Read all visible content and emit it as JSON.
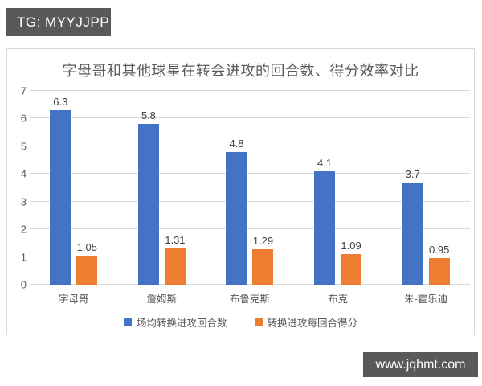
{
  "badges": {
    "top_left": "TG: MYYJJPP",
    "bottom_right": "www.jqhmt.com"
  },
  "colors": {
    "badge_bg": "#595959",
    "badge_text": "#ffffff",
    "chart_border": "#d9d9d9",
    "gridline": "#d9d9d9",
    "axis_text": "#595959",
    "data_label": "#404040",
    "title_text": "#595959",
    "series_blue": "#4472C4",
    "series_orange": "#ED7D31",
    "background": "#ffffff"
  },
  "chart_data": {
    "type": "bar",
    "title": "字母哥和其他球星在转会进攻的回合数、得分效率对比",
    "categories": [
      "字母哥",
      "詹姆斯",
      "布鲁克斯",
      "布克",
      "朱-霍乐迪"
    ],
    "series": [
      {
        "name": "场均转换进攻回合数",
        "color": "#4472C4",
        "values": [
          6.3,
          5.8,
          4.8,
          4.1,
          3.7
        ]
      },
      {
        "name": "转换进攻每回合得分",
        "color": "#ED7D31",
        "values": [
          1.05,
          1.31,
          1.29,
          1.09,
          0.95
        ]
      }
    ],
    "xlabel": "",
    "ylabel": "",
    "ylim": [
      0,
      7
    ],
    "yticks": [
      0,
      1,
      2,
      3,
      4,
      5,
      6,
      7
    ],
    "grid": true,
    "legend_position": "bottom"
  }
}
